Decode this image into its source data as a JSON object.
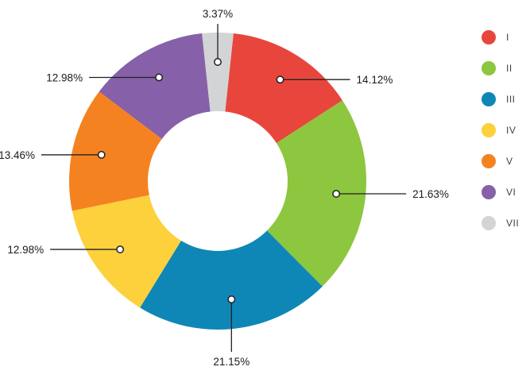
{
  "chart_data": {
    "type": "pie",
    "variant": "donut",
    "title": "",
    "legend_position": "right",
    "inner_radius_ratio": 0.47,
    "start_note": "last slice (VII) centered at 12 o'clock, slices drawn clockwise I..VII",
    "slices": [
      {
        "name": "I",
        "value": 14.12,
        "label": "14.12%",
        "color": "#e8463d"
      },
      {
        "name": "II",
        "value": 21.63,
        "label": "21.63%",
        "color": "#8dc63f"
      },
      {
        "name": "III",
        "value": 21.15,
        "label": "21.15%",
        "color": "#0e87b7"
      },
      {
        "name": "IV",
        "value": 12.98,
        "label": "12.98%",
        "color": "#fcd13b"
      },
      {
        "name": "V",
        "value": 13.46,
        "label": "13.46%",
        "color": "#f58220"
      },
      {
        "name": "VI",
        "value": 12.98,
        "label": "12.98%",
        "color": "#8660a8"
      },
      {
        "name": "VII",
        "value": 3.37,
        "label": "3.37%",
        "color": "#d3d4d5"
      }
    ],
    "line_color": "#231f20",
    "label_color": "#1a1a1a"
  }
}
